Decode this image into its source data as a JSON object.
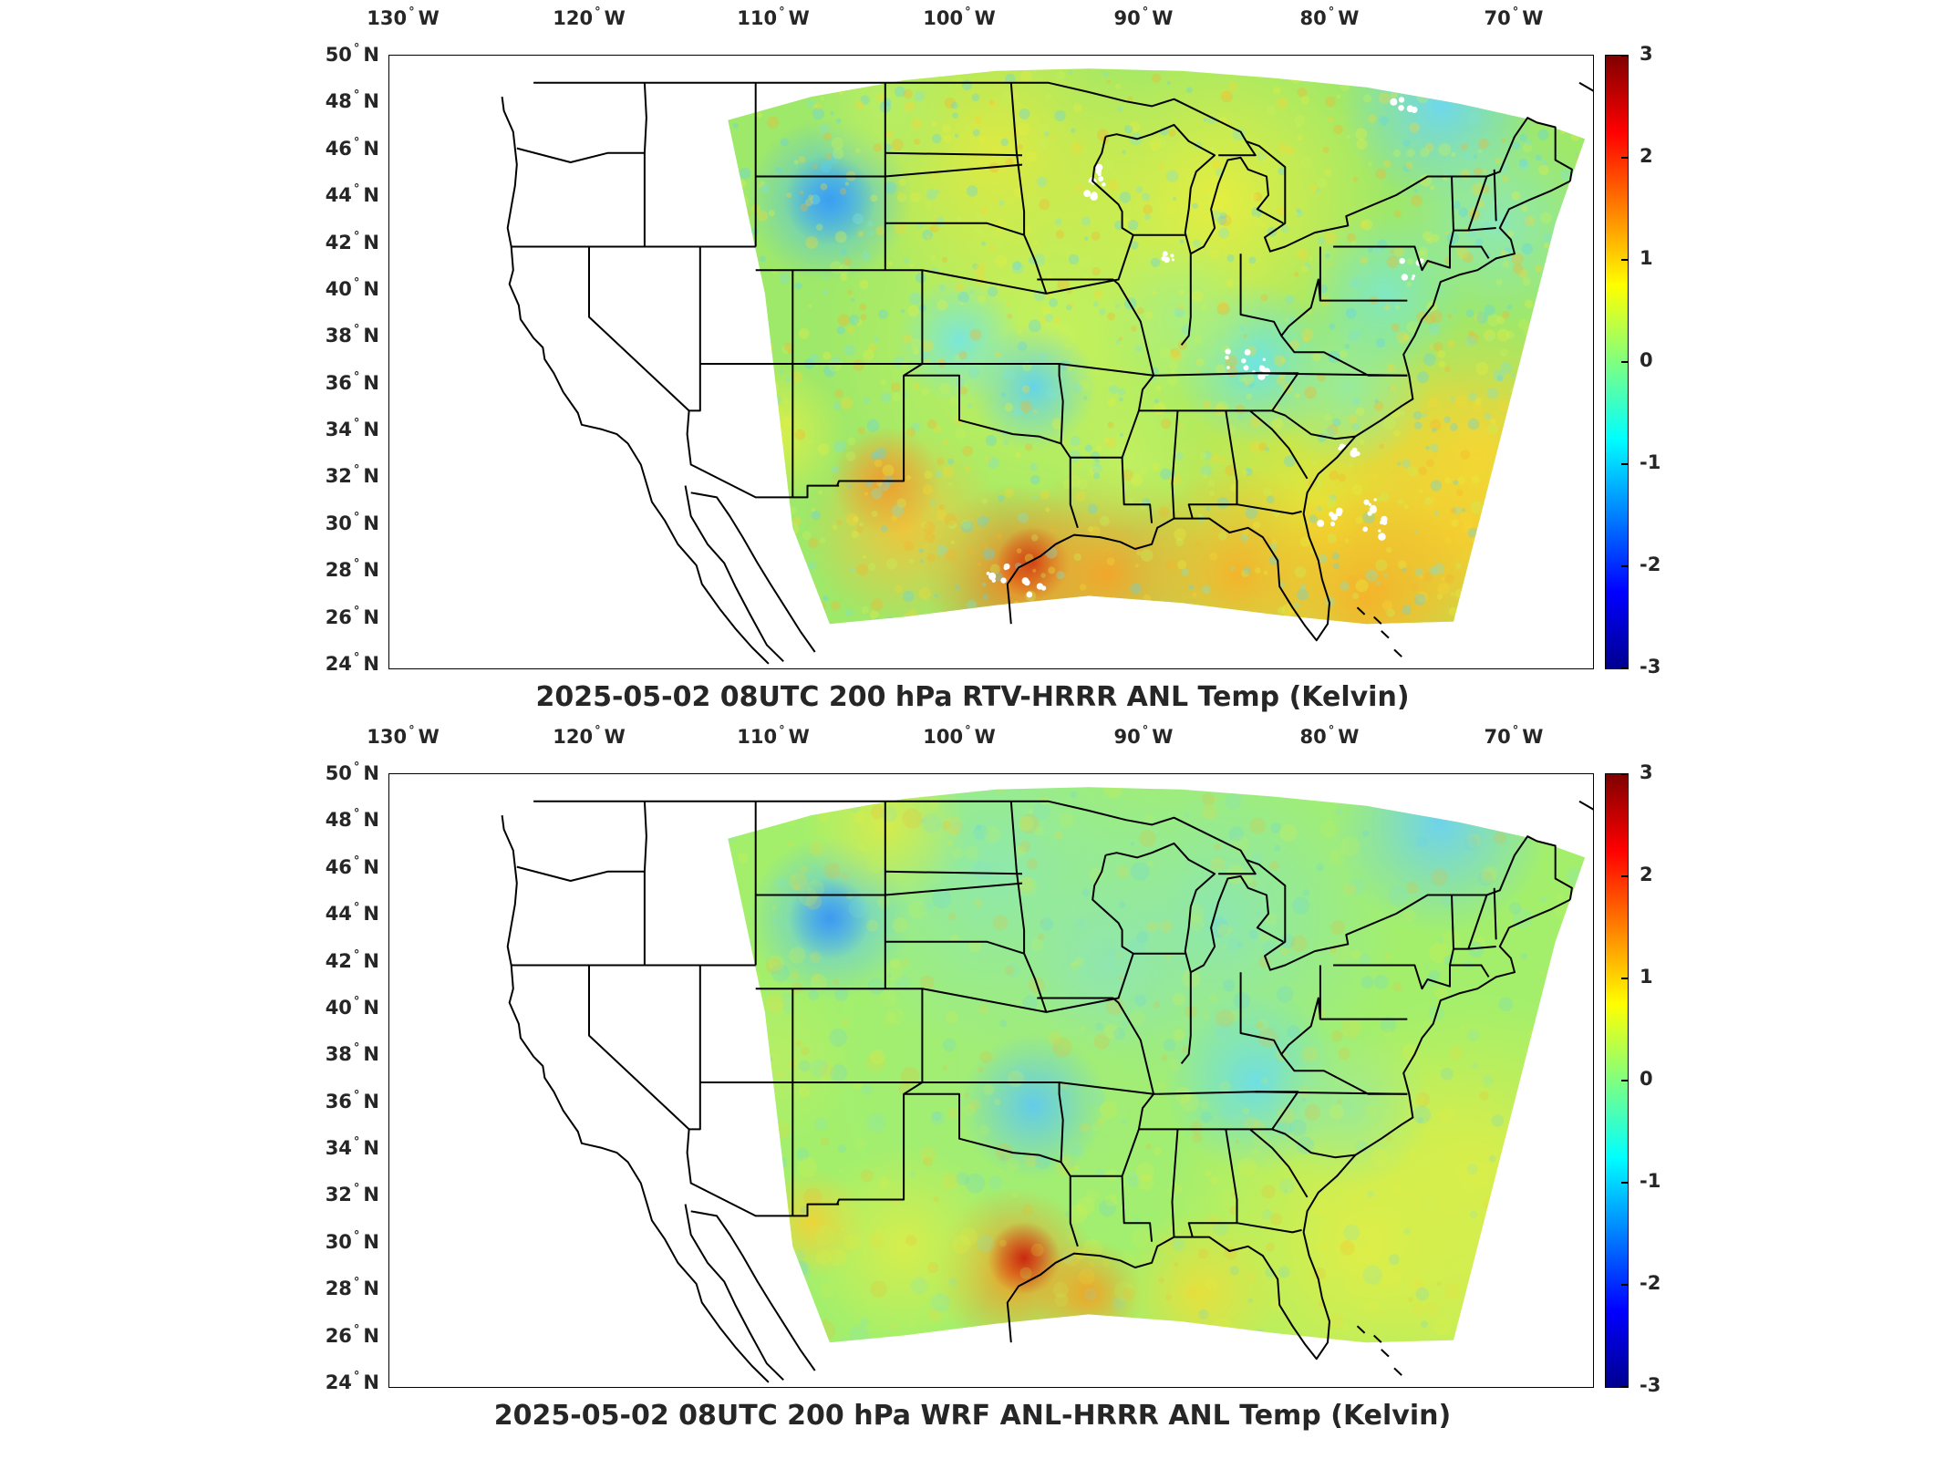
{
  "panels": [
    {
      "id": "top",
      "title": "2025-05-02 08UTC 200 hPa RTV-HRRR ANL Temp (Kelvin)",
      "lon_labels": [
        "130",
        "120",
        "110",
        "100",
        "90",
        "80",
        "70"
      ],
      "lat_labels": [
        "50",
        "48",
        "46",
        "44",
        "42",
        "40",
        "38",
        "36",
        "34",
        "32",
        "30",
        "28",
        "26",
        "24"
      ],
      "colorbar_ticks": [
        "3",
        "2",
        "1",
        "0",
        "-1",
        "-2",
        "-3"
      ]
    },
    {
      "id": "bottom",
      "title": "2025-05-02 08UTC 200 hPa WRF ANL-HRRR ANL Temp (Kelvin)",
      "lon_labels": [
        "130",
        "120",
        "110",
        "100",
        "90",
        "80",
        "70"
      ],
      "lat_labels": [
        "50",
        "48",
        "46",
        "44",
        "42",
        "40",
        "38",
        "36",
        "34",
        "32",
        "30",
        "28",
        "26",
        "24"
      ],
      "colorbar_ticks": [
        "3",
        "2",
        "1",
        "0",
        "-1",
        "-2",
        "-3"
      ]
    }
  ],
  "axis_suffix": {
    "lon": "W",
    "lat": "N",
    "degree": "°"
  },
  "colormap": [
    "#00008f",
    "#0000ff",
    "#0080ff",
    "#00ffff",
    "#80ff80",
    "#ffff00",
    "#ff8000",
    "#ff0000",
    "#800000"
  ],
  "colorbar_range": [
    -3,
    3
  ]
}
